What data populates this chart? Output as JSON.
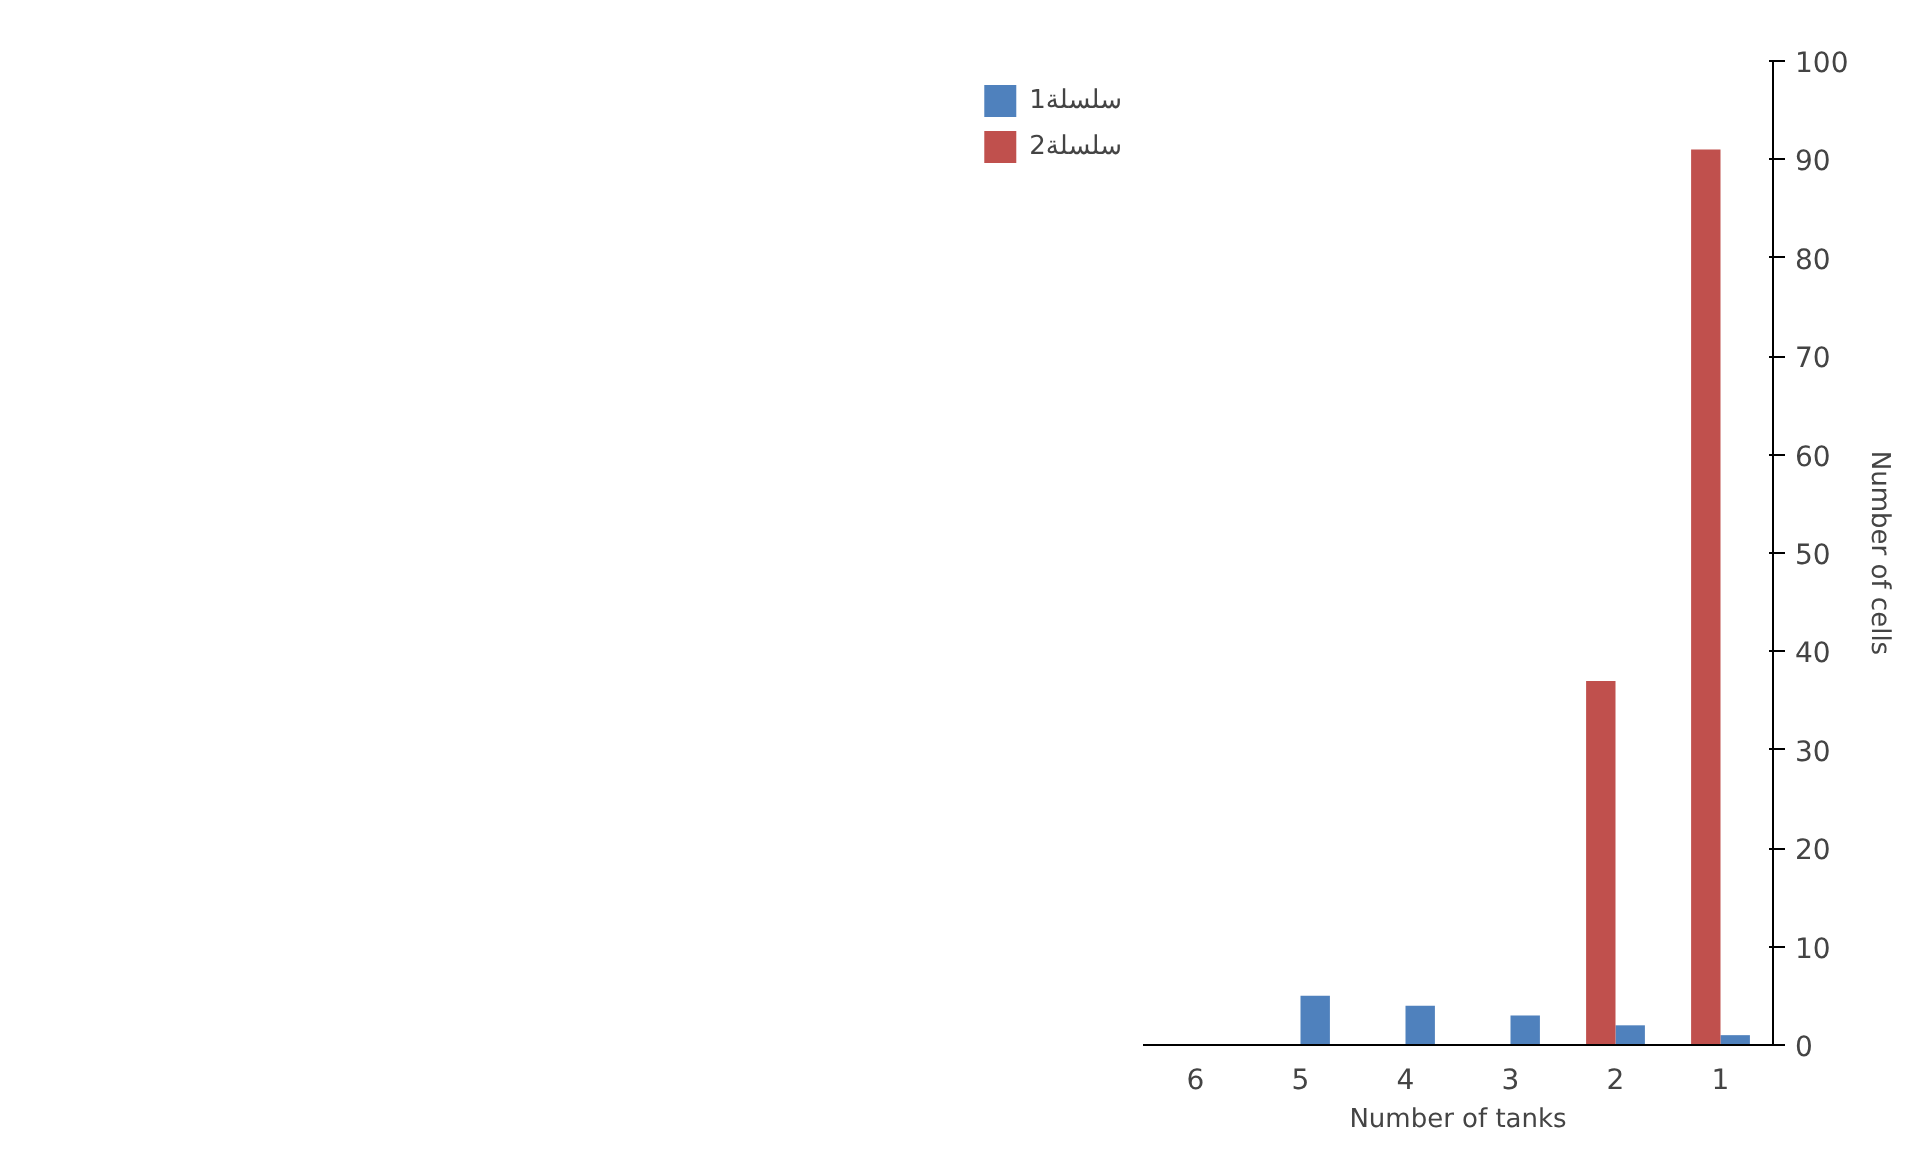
{
  "chart_data": {
    "type": "bar",
    "xlabel": "Number of tanks",
    "ylabel": "Number of cells",
    "categories": [
      "6",
      "5",
      "4",
      "3",
      "2",
      "1"
    ],
    "series": [
      {
        "name": "سلسلة1",
        "color": "#4f81bd",
        "values": [
          0,
          5,
          4,
          3,
          2,
          1
        ]
      },
      {
        "name": "سلسلة2",
        "color": "#c0504d",
        "values": [
          0,
          0,
          0,
          0,
          37,
          91
        ]
      }
    ],
    "ylim": [
      0,
      100
    ],
    "yticks": [
      0,
      10,
      20,
      30,
      40,
      50,
      60,
      70,
      80,
      90,
      100
    ],
    "grid": false,
    "legend": "left"
  }
}
